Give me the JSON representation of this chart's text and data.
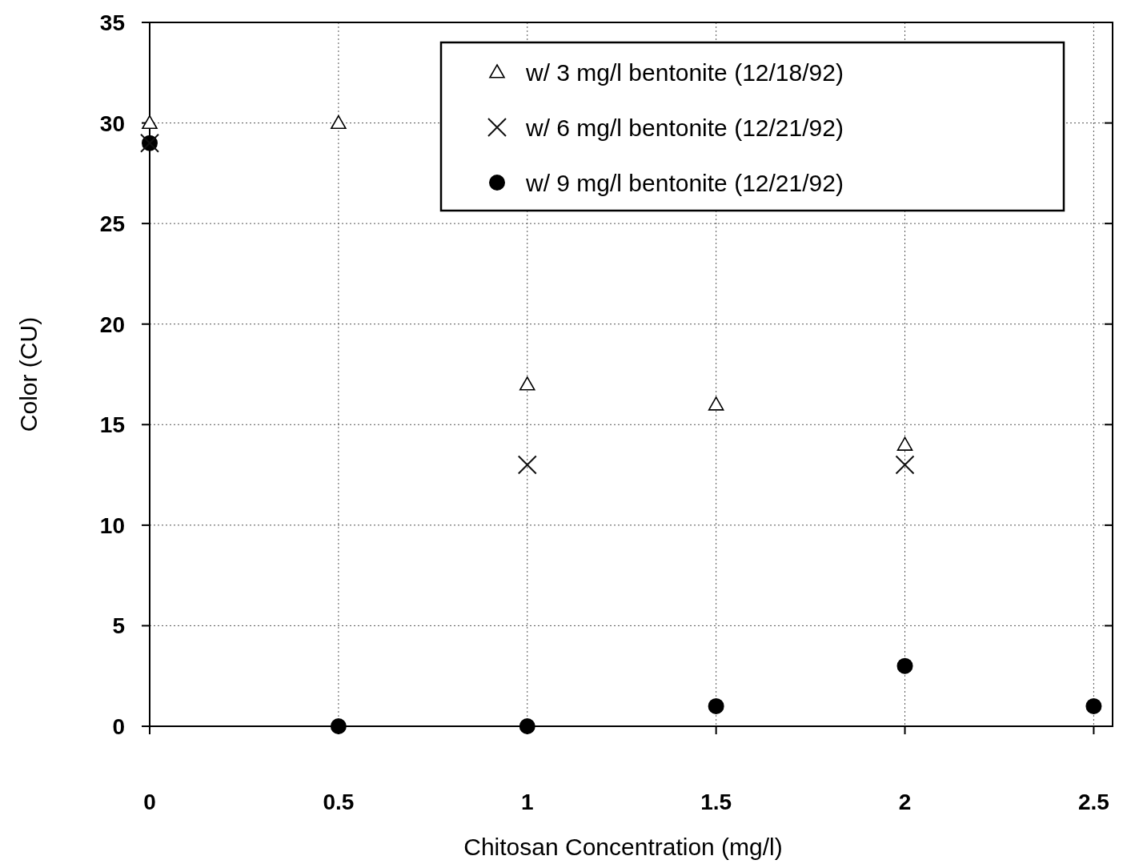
{
  "chart_data": {
    "type": "scatter",
    "xlabel": "Chitosan Concentration (mg/l)",
    "ylabel": "Color (CU)",
    "xlim": [
      0,
      2.55
    ],
    "xticks": [
      0,
      0.5,
      1,
      1.5,
      2,
      2.5
    ],
    "ylim": [
      0,
      35
    ],
    "yticks": [
      0,
      5,
      10,
      15,
      20,
      25,
      30,
      35
    ],
    "grid": true,
    "legend": "top right",
    "series": [
      {
        "name": "w/ 3 mg/l bentonite (12/18/92)",
        "color": "#000000",
        "marker": "triangle",
        "x": [
          0,
          0.5,
          1,
          1.5,
          2
        ],
        "values": [
          30,
          30,
          17,
          16,
          14
        ]
      },
      {
        "name": "w/ 6 mg/l bentonite (12/21/92)",
        "color": "#111111",
        "marker": "cross",
        "x": [
          0,
          1,
          2
        ],
        "values": [
          29,
          13,
          13
        ]
      },
      {
        "name": "w/ 9 mg/l bentonite (12/21/92)",
        "color": "#000000",
        "marker": "circle",
        "x": [
          0,
          0.5,
          1,
          1.5,
          2,
          2.5
        ],
        "values": [
          29,
          0,
          0,
          1,
          3,
          1
        ]
      }
    ]
  }
}
